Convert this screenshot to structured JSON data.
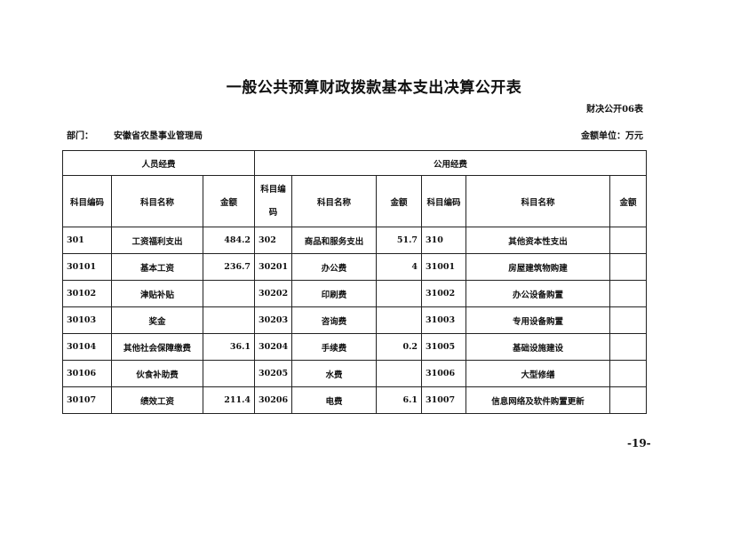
{
  "title": "一般公共预算财政拨款基本支出决算公开表",
  "form_code": "财决公开06表",
  "department_label": "部门：",
  "department_name": "安徽省农垦事业管理局",
  "unit": "金额单位：万元",
  "groups": {
    "personnel": "人员经费",
    "public": "公用经费"
  },
  "headers": [
    "科目编码",
    "科目名称",
    "金额",
    "科目编码",
    "科目名称",
    "金额",
    "科目编码",
    "科目名称",
    "金额"
  ],
  "rows": [
    [
      "301",
      "工资福利支出",
      "484.2",
      "302",
      "商品和服务支出",
      "51.7",
      "310",
      "其他资本性支出",
      ""
    ],
    [
      "30101",
      "基本工资",
      "236.7",
      "30201",
      "办公费",
      "4",
      "31001",
      "房屋建筑物购建",
      ""
    ],
    [
      "30102",
      "津贴补贴",
      "",
      "30202",
      "印刷费",
      "",
      "31002",
      "办公设备购置",
      ""
    ],
    [
      "30103",
      "奖金",
      "",
      "30203",
      "咨询费",
      "",
      "31003",
      "专用设备购置",
      ""
    ],
    [
      "30104",
      "其他社会保障缴费",
      "36.1",
      "30204",
      "手续费",
      "0.2",
      "31005",
      "基础设施建设",
      ""
    ],
    [
      "30106",
      "伙食补助费",
      "",
      "30205",
      "水费",
      "",
      "31006",
      "大型修缮",
      ""
    ],
    [
      "30107",
      "绩效工资",
      "211.4",
      "30206",
      "电费",
      "6.1",
      "31007",
      "信息网络及软件购置更新",
      ""
    ]
  ],
  "page_number": "-19-"
}
